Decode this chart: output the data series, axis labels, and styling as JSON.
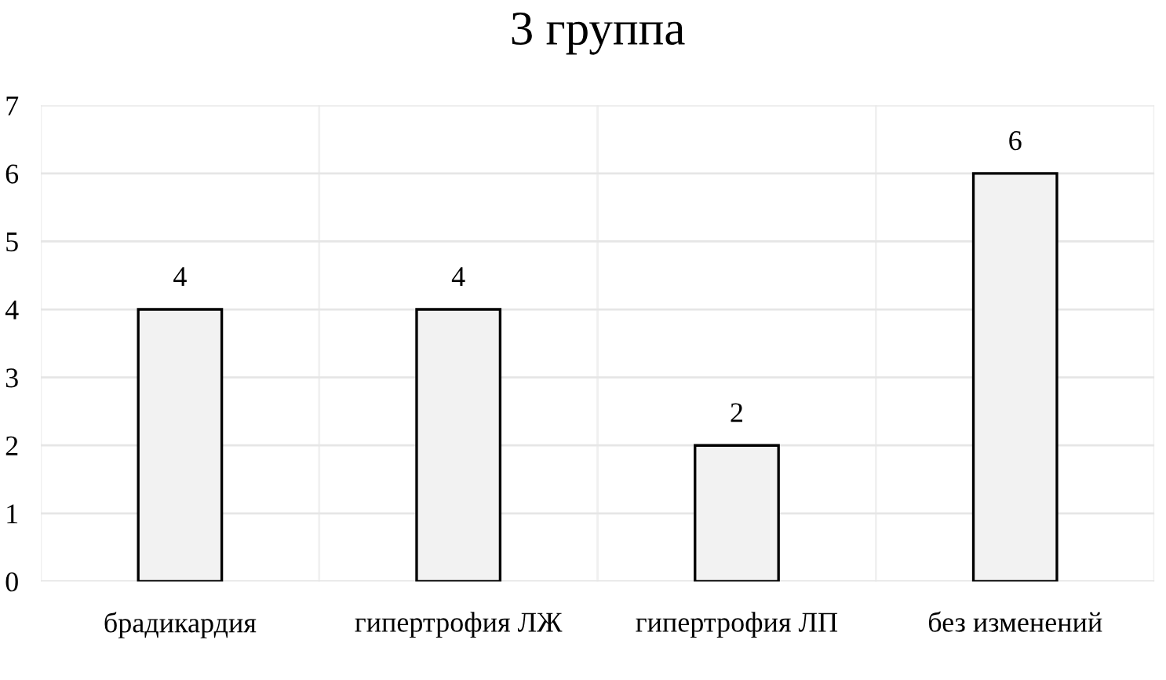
{
  "chart_data": {
    "type": "bar",
    "title": "3 группа",
    "categories": [
      "брадикардия",
      "гипертрофия ЛЖ",
      "гипертрофия ЛП",
      "без изменений"
    ],
    "values": [
      4,
      4,
      2,
      6
    ],
    "color": "#f2f2f2",
    "ylim": [
      0,
      7
    ],
    "yticks": [
      0,
      1,
      2,
      3,
      4,
      5,
      6,
      7
    ],
    "grid": true,
    "data_labels": true
  }
}
